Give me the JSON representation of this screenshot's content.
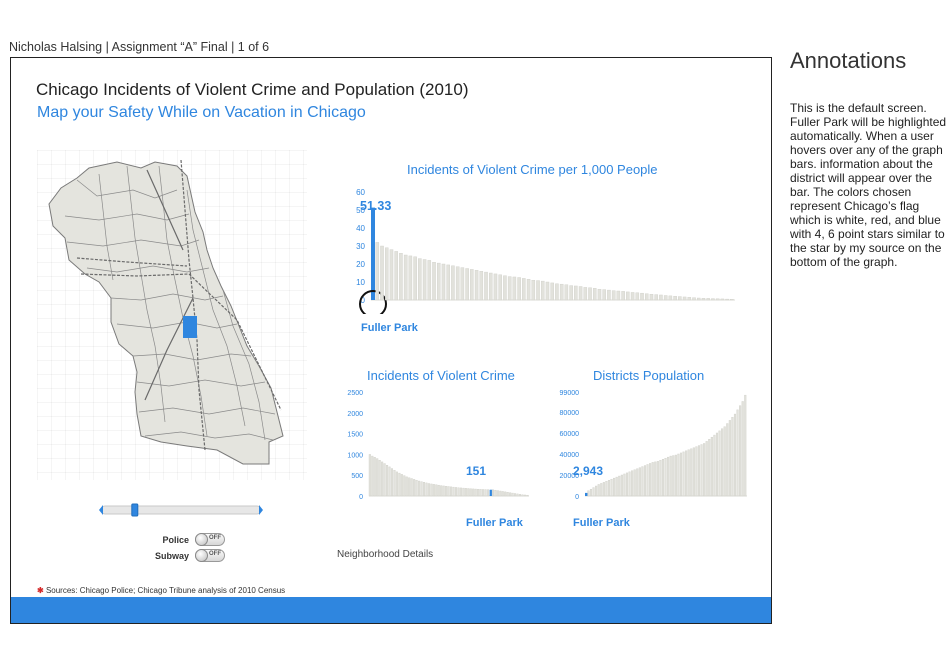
{
  "header": {
    "caption": "Nicholas Halsing | Assignment “A” Final | 1 of 6"
  },
  "frame": {
    "title": "Chicago Incidents of Violent Crime and Population (2010)",
    "subtitle": "Map your Safety While on Vacation in Chicago",
    "neighborhood_details": "Neighborhood Details",
    "sources_star": "✱",
    "sources": "Sources: Chicago Police; Chicago Tribune analysis of 2010 Census",
    "toggles": [
      {
        "label": "Police",
        "state": "OFF"
      },
      {
        "label": "Subway",
        "state": "OFF"
      }
    ],
    "slider": {
      "value": 0.2
    }
  },
  "colors": {
    "accent": "#2f86df",
    "bar": "#e2e2dc",
    "bar_edge": "#cfcfc8",
    "highlight": "#2f86df",
    "map_fill": "#e4e4de",
    "map_edge": "#7a7a7a"
  },
  "chart_data": [
    {
      "type": "bar",
      "title": "Incidents of Violent Crime per 1,000 People",
      "xlabel": "",
      "ylabel": "",
      "ylim": [
        0,
        60
      ],
      "yticks": [
        0,
        10,
        20,
        30,
        40,
        50,
        60
      ],
      "highlight_index": 0,
      "highlight_label": "Fuller Park",
      "highlight_value_label": "51.33",
      "values": [
        51.33,
        32,
        30,
        29,
        28,
        27,
        26,
        25,
        24.5,
        24,
        23,
        22.5,
        22,
        21,
        20.5,
        20,
        19.5,
        19,
        18.5,
        18,
        17.5,
        17,
        16.5,
        16,
        15.5,
        15,
        14.5,
        14,
        13.5,
        13,
        12.8,
        12.5,
        12,
        11.5,
        11,
        10.8,
        10.5,
        10,
        9.5,
        9,
        8.8,
        8.5,
        8,
        7.8,
        7.5,
        7,
        6.8,
        6.5,
        6,
        5.8,
        5.5,
        5.2,
        5,
        4.8,
        4.5,
        4.2,
        4,
        3.8,
        3.5,
        3.2,
        3,
        2.8,
        2.5,
        2.3,
        2.1,
        1.9,
        1.7,
        1.5,
        1.3,
        1.1,
        1,
        0.9,
        0.8,
        0.7,
        0.6,
        0.5,
        0.4
      ]
    },
    {
      "type": "bar",
      "title": "Incidents of Violent Crime",
      "xlabel": "",
      "ylabel": "",
      "ylim": [
        0,
        2500
      ],
      "yticks": [
        0,
        500,
        1000,
        1500,
        2000,
        2500
      ],
      "highlight_index": 49,
      "highlight_label": "Fuller Park",
      "highlight_value_label": "151",
      "values": [
        1000,
        960,
        930,
        900,
        860,
        820,
        780,
        740,
        700,
        660,
        620,
        580,
        550,
        520,
        490,
        460,
        440,
        420,
        400,
        380,
        360,
        345,
        330,
        315,
        300,
        290,
        280,
        270,
        260,
        250,
        242,
        235,
        228,
        220,
        213,
        206,
        200,
        195,
        190,
        185,
        180,
        175,
        171,
        167,
        163,
        160,
        157,
        155,
        153,
        151,
        148,
        140,
        130,
        120,
        110,
        100,
        90,
        80,
        70,
        60,
        50,
        40,
        30,
        25,
        20
      ]
    },
    {
      "type": "bar",
      "title": "Districts Population",
      "xlabel": "",
      "ylabel": "",
      "ylim": [
        0,
        99000
      ],
      "yticks": [
        0,
        20000,
        40000,
        60000,
        80000,
        99000
      ],
      "highlight_index": 0,
      "highlight_label": "Fuller Park",
      "highlight_value_label": "2,943",
      "values": [
        2943,
        5000,
        6500,
        8000,
        9500,
        11000,
        12000,
        13000,
        14000,
        15000,
        16000,
        17000,
        18000,
        19000,
        20000,
        21000,
        22000,
        23000,
        24000,
        25000,
        26000,
        27000,
        28000,
        29000,
        30000,
        31000,
        32000,
        32500,
        33000,
        34000,
        35000,
        36000,
        37000,
        38000,
        38500,
        39000,
        40000,
        41000,
        42000,
        43000,
        44000,
        45000,
        46000,
        47000,
        48000,
        49000,
        50000,
        52000,
        54000,
        56000,
        58000,
        60000,
        62000,
        64000,
        66000,
        69000,
        72000,
        75000,
        78000,
        82000,
        86000,
        90000,
        96000
      ]
    }
  ],
  "annotations": {
    "title": "Annotations",
    "body": "This is the default screen. Fuller Park will be highlighted automatically. When a user hovers over any of the graph bars. information about the district will appear over the bar. The colors chosen represent Chicago’s flag which is white, red, and blue with 4, 6 point stars similar to the star by my source on the bottom of the graph."
  }
}
